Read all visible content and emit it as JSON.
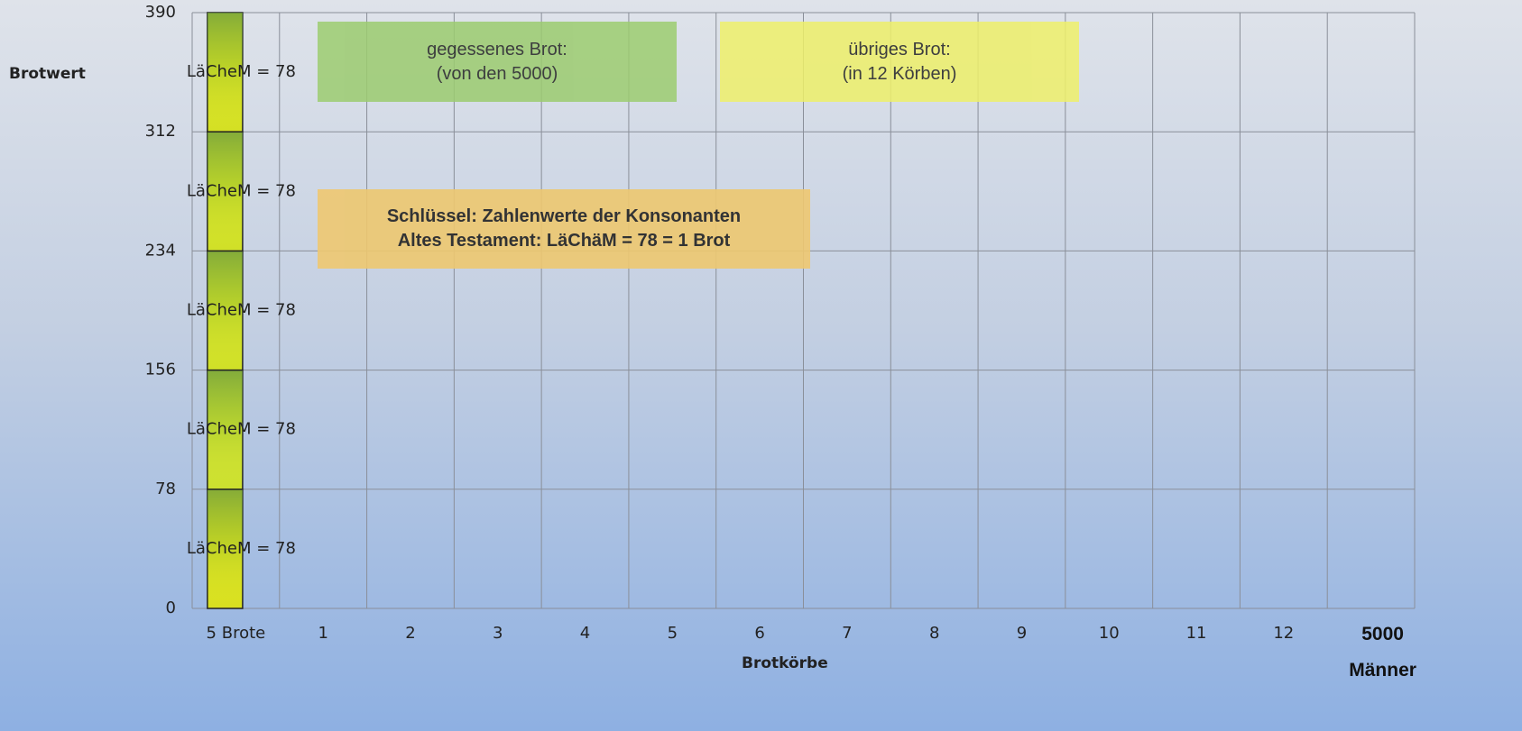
{
  "chart_data": {
    "type": "stacked_bar",
    "ylabel": "Brotwert",
    "xlabel": "Brotkörbe",
    "categories": [
      "5 Brote",
      "1",
      "2",
      "3",
      "4",
      "5",
      "6",
      "7",
      "8",
      "9",
      "10",
      "11",
      "12",
      "5000 Männer"
    ],
    "ylim": [
      0,
      390
    ],
    "yticks": [
      0,
      78,
      156,
      234,
      312,
      390
    ],
    "grid": true,
    "series": [
      {
        "color": "#d8e020",
        "values": [
          78,
          null,
          null,
          null,
          null,
          null,
          null,
          null,
          null,
          null,
          null,
          null,
          null,
          null
        ],
        "value_labels": [
          "LäCheM = 78",
          null,
          null,
          null,
          null,
          null,
          null,
          null,
          null,
          null,
          null,
          null,
          null,
          null
        ]
      },
      {
        "color": "#cce030",
        "values": [
          78,
          null,
          null,
          null,
          null,
          null,
          null,
          null,
          null,
          null,
          null,
          null,
          null,
          null
        ],
        "value_labels": [
          "LäCheM = 78",
          null,
          null,
          null,
          null,
          null,
          null,
          null,
          null,
          null,
          null,
          null,
          null,
          null
        ]
      },
      {
        "color": "#d0e028",
        "values": [
          78,
          null,
          null,
          null,
          null,
          null,
          null,
          null,
          null,
          null,
          null,
          null,
          null,
          null
        ],
        "value_labels": [
          "LäCheM = 78",
          null,
          null,
          null,
          null,
          null,
          null,
          null,
          null,
          null,
          null,
          null,
          null,
          null
        ]
      },
      {
        "color": "#d0e028",
        "values": [
          78,
          null,
          null,
          null,
          null,
          null,
          null,
          null,
          null,
          null,
          null,
          null,
          null,
          null
        ],
        "value_labels": [
          "LäCheM = 78",
          null,
          null,
          null,
          null,
          null,
          null,
          null,
          null,
          null,
          null,
          null,
          null,
          null
        ]
      },
      {
        "color": "#d4e024",
        "values": [
          78,
          null,
          null,
          null,
          null,
          null,
          null,
          null,
          null,
          null,
          null,
          null,
          null,
          null
        ],
        "value_labels": [
          "LäCheM = 78",
          null,
          null,
          null,
          null,
          null,
          null,
          null,
          null,
          null,
          null,
          null,
          null,
          null
        ]
      }
    ],
    "annotations": [
      {
        "lines": [
          "gegessenes  Brot:",
          "(von den 5000)"
        ],
        "color": "#9ccc70"
      },
      {
        "lines": [
          "übriges Brot:",
          "(in 12 Körben)"
        ],
        "color": "#eef06a"
      },
      {
        "lines": [
          "Schlüssel: Zahlenwerte der Konsonanten",
          "Altes Testament: LäChäM = 78 = 1 Brot"
        ],
        "color": "#eec870"
      }
    ]
  }
}
